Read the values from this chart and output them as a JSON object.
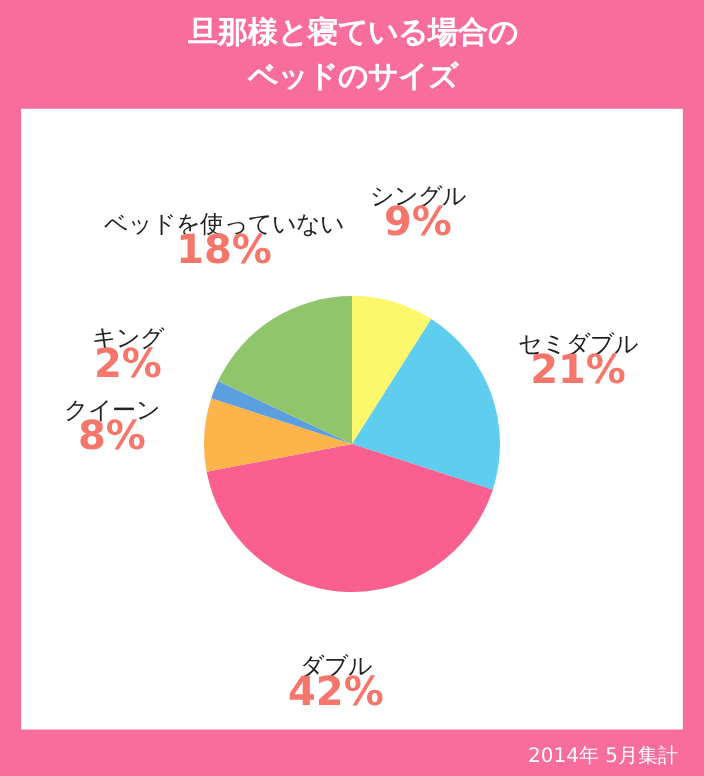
{
  "chart_data": {
    "type": "pie",
    "title": "旦那様と寝ている場合の",
    "subtitle": "ベッドのサイズ",
    "categories": [
      "シングル",
      "セミダブル",
      "ダブル",
      "クイーン",
      "キング",
      "ベッドを使っていない"
    ],
    "values": [
      9,
      21,
      42,
      8,
      2,
      18
    ],
    "value_labels": [
      "9%",
      "21%",
      "42%",
      "8%",
      "2%",
      "18%"
    ],
    "colors": [
      "#fdf86b",
      "#5fcdee",
      "#fb5f8f",
      "#fdb44a",
      "#5b9fe0",
      "#90c56c"
    ],
    "annotations": [
      "2014年 5月集計"
    ]
  }
}
